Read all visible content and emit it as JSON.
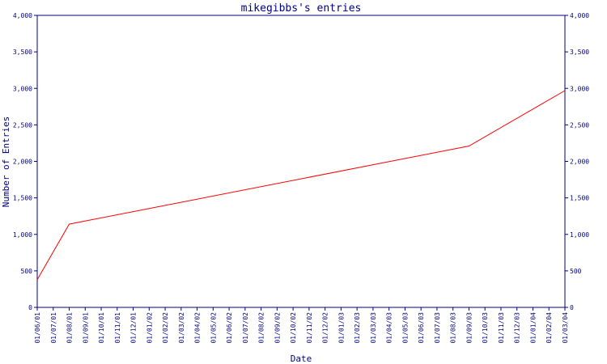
{
  "chart_data": {
    "type": "line",
    "title": "mikegibbs's entries",
    "xlabel": "Date",
    "ylabel": "Number of Entries",
    "ylim": [
      0,
      4000
    ],
    "yticks": [
      "0",
      "500",
      "1,000",
      "1,500",
      "2,000",
      "2,500",
      "3,000",
      "3,500",
      "4,000"
    ],
    "x_tick_labels": [
      "01/06/01",
      "01/07/01",
      "01/08/01",
      "01/09/01",
      "01/10/01",
      "01/11/01",
      "01/12/01",
      "01/01/02",
      "01/02/02",
      "01/03/02",
      "01/04/02",
      "01/05/02",
      "01/06/02",
      "01/07/02",
      "01/08/02",
      "01/09/02",
      "01/10/02",
      "01/11/02",
      "01/12/02",
      "01/01/03",
      "01/02/03",
      "01/03/03",
      "01/04/03",
      "01/05/03",
      "01/06/03",
      "01/07/03",
      "01/08/03",
      "01/09/03",
      "01/10/03",
      "01/11/03",
      "01/12/03",
      "01/01/04",
      "01/02/04",
      "01/03/04"
    ],
    "grid": false,
    "colors": {
      "axis": "#000080",
      "line": "#ff0000",
      "background": "#ffffff"
    },
    "series": [
      {
        "x": [
          "2001-06-01",
          "2001-08-01",
          "2003-09-01",
          "2004-03-01"
        ],
        "values": [
          380,
          1140,
          2210,
          2970
        ]
      }
    ]
  }
}
